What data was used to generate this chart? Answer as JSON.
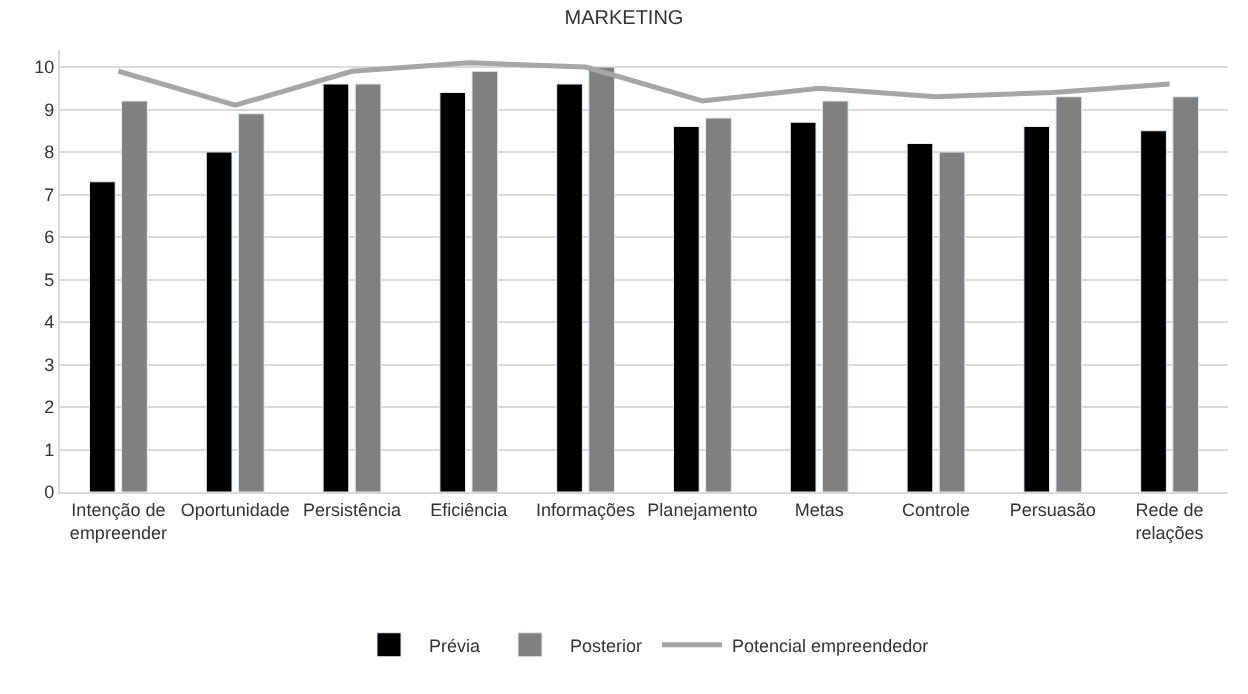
{
  "chart_data": {
    "type": "bar",
    "title": "MARKETING",
    "categories": [
      "Intenção de empreender",
      "Oportunidade",
      "Persistência",
      "Eficiência",
      "Informações",
      "Planejamento",
      "Metas",
      "Controle",
      "Persuasão",
      "Rede de relações"
    ],
    "series": [
      {
        "name": "Prévia",
        "color": "#000000",
        "values": [
          7.3,
          8.0,
          9.6,
          9.4,
          9.6,
          8.6,
          8.7,
          8.2,
          8.6,
          8.5
        ]
      },
      {
        "name": "Posterior",
        "color": "#808080",
        "values": [
          9.2,
          8.9,
          9.6,
          9.9,
          10.0,
          8.8,
          9.2,
          8.0,
          9.3,
          9.3
        ]
      },
      {
        "name": "Potencial empreendedor",
        "type": "line",
        "color": "#a6a6a6",
        "values": [
          9.9,
          9.1,
          9.9,
          10.1,
          10.0,
          9.2,
          9.5,
          9.3,
          9.4,
          9.6
        ]
      }
    ],
    "ylim": [
      0,
      10.4
    ],
    "yticks": [
      0,
      1,
      2,
      3,
      4,
      5,
      6,
      7,
      8,
      9,
      10
    ],
    "grid": "y",
    "legend": "bottom",
    "marker": "none"
  }
}
